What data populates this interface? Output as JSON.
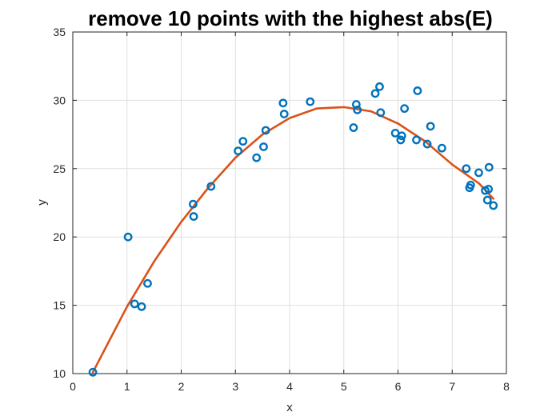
{
  "chart_data": {
    "type": "scatter",
    "title": "remove 10 points with the highest abs(E)",
    "xlabel": "x",
    "ylabel": "y",
    "xlim": [
      0,
      8
    ],
    "ylim": [
      10,
      35
    ],
    "xticks": [
      0,
      1,
      2,
      3,
      4,
      5,
      6,
      7,
      8
    ],
    "yticks": [
      10,
      15,
      20,
      25,
      30,
      35
    ],
    "grid": true,
    "colors": {
      "points": "#0072BD",
      "fit": "#D95319"
    },
    "series": [
      {
        "kind": "points",
        "points": [
          [
            0.37,
            10.1
          ],
          [
            1.02,
            20.0
          ],
          [
            1.14,
            15.1
          ],
          [
            1.27,
            14.9
          ],
          [
            1.38,
            16.6
          ],
          [
            2.22,
            22.4
          ],
          [
            2.23,
            21.5
          ],
          [
            2.55,
            23.7
          ],
          [
            3.05,
            26.3
          ],
          [
            3.14,
            27.0
          ],
          [
            3.39,
            25.8
          ],
          [
            3.52,
            26.6
          ],
          [
            3.56,
            27.8
          ],
          [
            3.88,
            29.8
          ],
          [
            3.9,
            29.0
          ],
          [
            4.38,
            29.9
          ],
          [
            5.18,
            28.0
          ],
          [
            5.23,
            29.7
          ],
          [
            5.25,
            29.3
          ],
          [
            5.58,
            30.5
          ],
          [
            5.66,
            31.0
          ],
          [
            5.68,
            29.1
          ],
          [
            5.95,
            27.6
          ],
          [
            6.05,
            27.1
          ],
          [
            6.07,
            27.4
          ],
          [
            6.12,
            29.4
          ],
          [
            6.34,
            27.1
          ],
          [
            6.36,
            30.7
          ],
          [
            6.54,
            26.8
          ],
          [
            6.6,
            28.1
          ],
          [
            6.81,
            26.5
          ],
          [
            7.26,
            25.0
          ],
          [
            7.32,
            23.6
          ],
          [
            7.34,
            23.8
          ],
          [
            7.49,
            24.7
          ],
          [
            7.61,
            23.4
          ],
          [
            7.65,
            22.7
          ],
          [
            7.67,
            23.5
          ],
          [
            7.68,
            25.1
          ],
          [
            7.76,
            22.3
          ]
        ]
      },
      {
        "kind": "fit",
        "x": [
          0.37,
          1.0,
          1.5,
          2.0,
          2.5,
          3.0,
          3.5,
          4.0,
          4.5,
          5.0,
          5.5,
          6.0,
          6.5,
          7.0,
          7.5,
          7.76
        ],
        "y": [
          10.1,
          14.9,
          18.2,
          21.1,
          23.6,
          25.8,
          27.5,
          28.7,
          29.4,
          29.5,
          29.2,
          28.3,
          27.0,
          25.3,
          23.9,
          22.8
        ]
      }
    ]
  }
}
